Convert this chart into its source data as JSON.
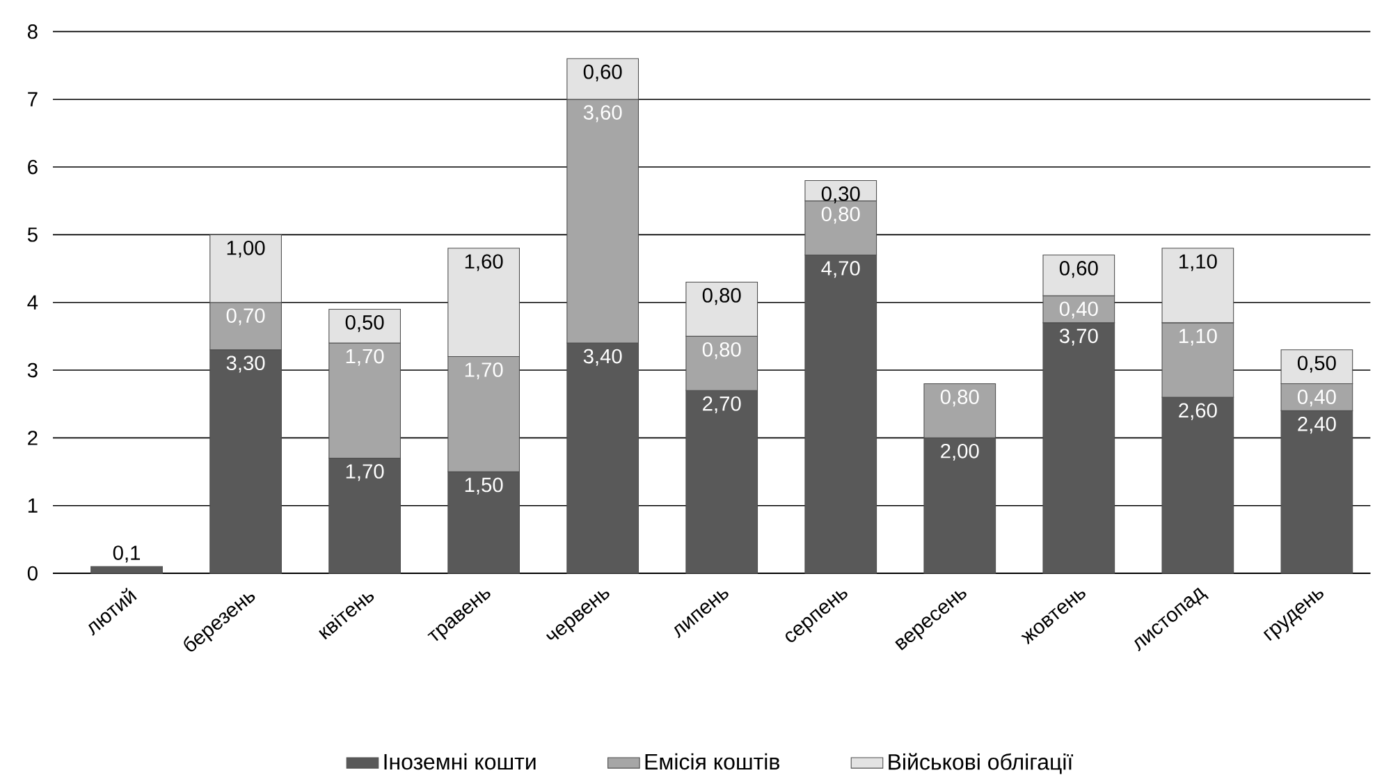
{
  "chart_data": {
    "type": "bar",
    "stacked": true,
    "categories": [
      "лютий",
      "березень",
      "квітень",
      "травень",
      "червень",
      "липень",
      "серпень",
      "вересень",
      "жовтень",
      "листопад",
      "грудень"
    ],
    "series": [
      {
        "name": "Іноземні кошти",
        "color": "#595959",
        "values": [
          0.1,
          3.3,
          1.7,
          1.5,
          3.4,
          2.7,
          4.7,
          2.0,
          3.7,
          2.6,
          2.4
        ],
        "value_labels": [
          "0,1",
          "3,30",
          "1,70",
          "1,50",
          "3,40",
          "2,70",
          "4,70",
          "2,00",
          "3,70",
          "2,60",
          "2,40"
        ]
      },
      {
        "name": "Емісія коштів",
        "color": "#a6a6a6",
        "values": [
          null,
          0.7,
          1.7,
          1.7,
          3.6,
          0.8,
          0.8,
          0.8,
          0.4,
          1.1,
          0.4
        ],
        "value_labels": [
          null,
          "0,70",
          "1,70",
          "1,70",
          "3,60",
          "0,80",
          "0,80",
          "0,80",
          "0,40",
          "1,10",
          "0,40"
        ]
      },
      {
        "name": "Військові облігації",
        "color": "#e3e3e3",
        "values": [
          null,
          1.0,
          0.5,
          1.6,
          0.6,
          0.8,
          0.3,
          null,
          0.6,
          1.1,
          0.5
        ],
        "value_labels": [
          null,
          "1,00",
          "0,50",
          "1,60",
          "0,60",
          "0,80",
          "0,30",
          null,
          "0,60",
          "1,10",
          "0,50"
        ]
      }
    ],
    "ylim": [
      0,
      8
    ],
    "yticks": [
      0,
      1,
      2,
      3,
      4,
      5,
      6,
      7,
      8
    ],
    "grid": "y",
    "legend": "bottom"
  }
}
